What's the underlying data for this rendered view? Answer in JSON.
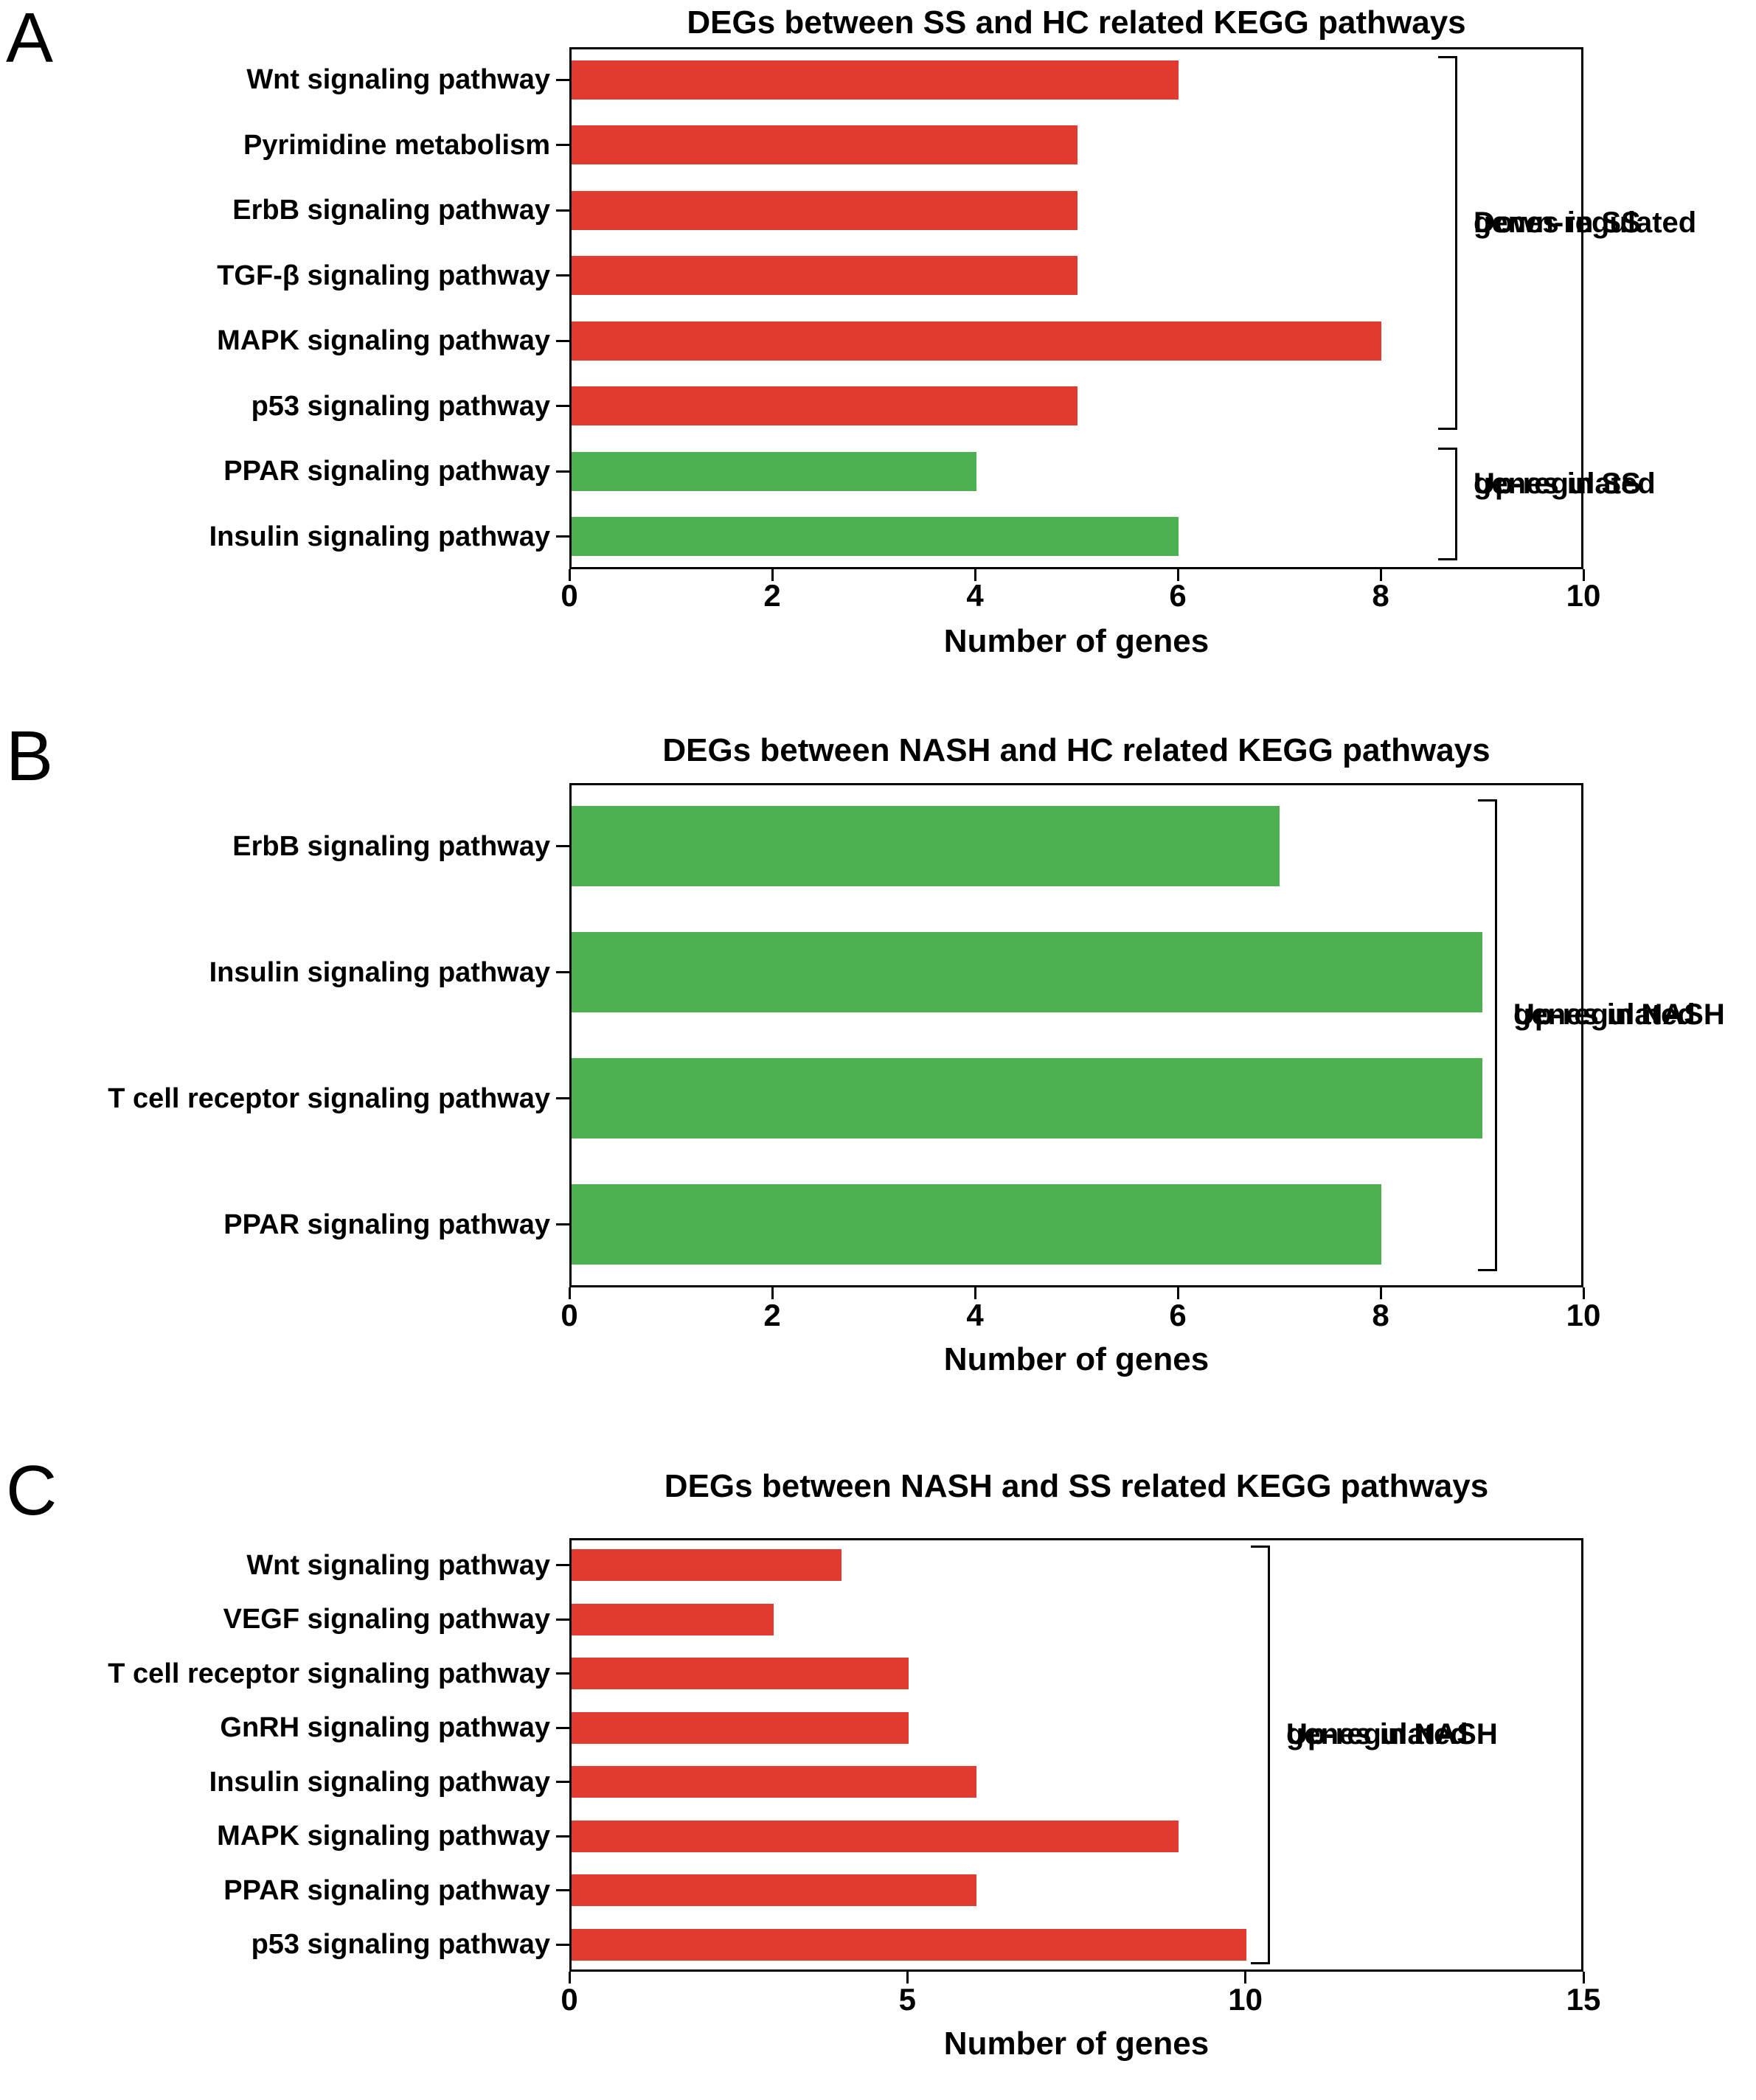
{
  "figure": {
    "background": "#ffffff",
    "bar_color_down": "#e13a2f",
    "bar_color_up": "#4db050",
    "axis_color": "#000000"
  },
  "chart_data": [
    {
      "type": "bar",
      "orientation": "horizontal",
      "panel": "A",
      "title": "DEGs between SS and HC related KEGG pathways",
      "xlabel": "Number of genes",
      "xlim": [
        0,
        10
      ],
      "xticks": [
        0,
        2,
        4,
        6,
        8,
        10
      ],
      "categories": [
        "Wnt signaling pathway",
        "Pyrimidine metabolism",
        "ErbB signaling pathway",
        "TGF-β signaling pathway",
        "MAPK signaling pathway",
        "p53 signaling pathway",
        "PPAR signaling pathway",
        "Insulin signaling pathway"
      ],
      "values": [
        6,
        5,
        5,
        5,
        8,
        5,
        4,
        6
      ],
      "bar_colors": [
        "#e13a2f",
        "#e13a2f",
        "#e13a2f",
        "#e13a2f",
        "#e13a2f",
        "#e13a2f",
        "#4db050",
        "#4db050"
      ],
      "annotations": [
        {
          "from": 0,
          "to": 5,
          "lines": [
            "Down-regulated",
            "genes in SS"
          ]
        },
        {
          "from": 6,
          "to": 7,
          "lines": [
            "Up-regulated",
            "genes in SS"
          ]
        }
      ]
    },
    {
      "type": "bar",
      "orientation": "horizontal",
      "panel": "B",
      "title": "DEGs between NASH and HC related KEGG pathways",
      "xlabel": "Number of genes",
      "xlim": [
        0,
        10
      ],
      "xticks": [
        0,
        2,
        4,
        6,
        8,
        10
      ],
      "categories": [
        "ErbB signaling pathway",
        "Insulin signaling pathway",
        "T cell receptor signaling pathway",
        "PPAR signaling pathway"
      ],
      "values": [
        7,
        9,
        9,
        8
      ],
      "bar_colors": [
        "#4db050",
        "#4db050",
        "#4db050",
        "#4db050"
      ],
      "annotations": [
        {
          "from": 0,
          "to": 3,
          "lines": [
            "Up-regulated",
            "genes in NASH"
          ]
        }
      ]
    },
    {
      "type": "bar",
      "orientation": "horizontal",
      "panel": "C",
      "title": "DEGs between NASH and SS related KEGG pathways",
      "xlabel": "Number of genes",
      "xlim": [
        0,
        15
      ],
      "xticks": [
        0,
        5,
        10,
        15
      ],
      "categories": [
        "Wnt signaling pathway",
        "VEGF signaling pathway",
        "T cell receptor signaling pathway",
        "GnRH signaling pathway",
        "Insulin signaling pathway",
        "MAPK signaling pathway",
        "PPAR signaling pathway",
        "p53 signaling pathway"
      ],
      "values": [
        4,
        3,
        5,
        5,
        6,
        9,
        6,
        10
      ],
      "bar_colors": [
        "#e13a2f",
        "#e13a2f",
        "#e13a2f",
        "#e13a2f",
        "#e13a2f",
        "#e13a2f",
        "#e13a2f",
        "#e13a2f"
      ],
      "annotations": [
        {
          "from": 0,
          "to": 7,
          "lines": [
            "Up-regulated",
            "genes in NASH"
          ]
        }
      ]
    }
  ]
}
